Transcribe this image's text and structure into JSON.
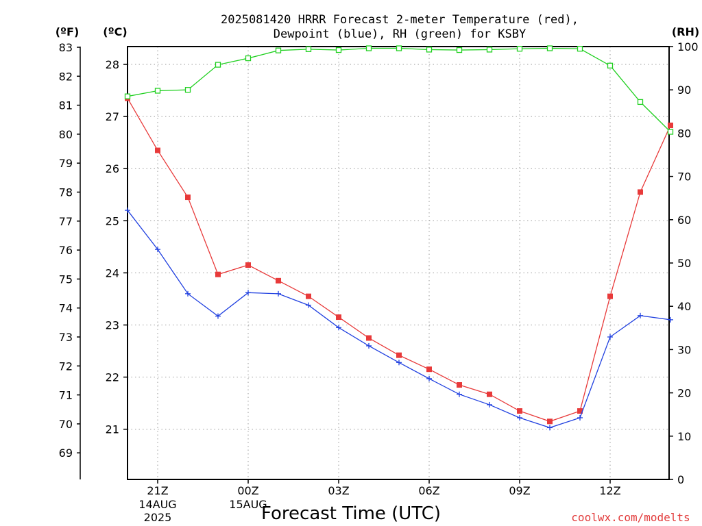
{
  "title_line1": "2025081420 HRRR Forecast 2-meter Temperature (red),",
  "title_line2": "Dewpoint (blue), RH (green) for KSBY",
  "units": {
    "fahrenheit": "(ºF)",
    "celsius": "(ºC)",
    "rh": "(RH)"
  },
  "xlabel": "Forecast Time (UTC)",
  "credit": "coolwx.com/modelts",
  "chart_data": {
    "type": "line",
    "title": "2025081420 HRRR Forecast 2-meter Temperature (red), Dewpoint (blue), RH (green) for KSBY",
    "xlabel": "Forecast Time (UTC)",
    "x_hours_utc": [
      "20Z",
      "21Z",
      "22Z",
      "23Z",
      "00Z",
      "01Z",
      "02Z",
      "03Z",
      "04Z",
      "05Z",
      "06Z",
      "07Z",
      "08Z",
      "09Z",
      "10Z",
      "11Z",
      "12Z",
      "13Z",
      "14Z"
    ],
    "x_ticks": [
      {
        "hour_index": 1,
        "label": "21Z",
        "sub": [
          "14AUG",
          "2025"
        ]
      },
      {
        "hour_index": 4,
        "label": "00Z",
        "sub": [
          "15AUG"
        ]
      },
      {
        "hour_index": 7,
        "label": "03Z",
        "sub": []
      },
      {
        "hour_index": 10,
        "label": "06Z",
        "sub": []
      },
      {
        "hour_index": 13,
        "label": "09Z",
        "sub": []
      },
      {
        "hour_index": 16,
        "label": "12Z",
        "sub": []
      }
    ],
    "left_axis_f": {
      "label": "(ºF)",
      "ticks": [
        69,
        70,
        71,
        72,
        73,
        74,
        75,
        76,
        77,
        78,
        79,
        80,
        81,
        82,
        83
      ]
    },
    "left_axis_c": {
      "label": "(ºC)",
      "ylim": [
        19.95,
        28.35
      ],
      "ticks": [
        21,
        22,
        23,
        24,
        25,
        26,
        27,
        28
      ]
    },
    "right_axis_rh": {
      "label": "(RH)",
      "ylim": [
        0,
        100
      ],
      "ticks": [
        0,
        10,
        20,
        30,
        40,
        50,
        60,
        70,
        80,
        90,
        100
      ]
    },
    "grid": true,
    "series": [
      {
        "name": "Temperature",
        "axis": "celsius",
        "color": "#e83a3a",
        "marker": "filled-square",
        "values": [
          27.35,
          26.35,
          25.45,
          23.97,
          24.15,
          23.85,
          23.55,
          23.15,
          22.75,
          22.42,
          22.15,
          21.85,
          21.67,
          21.35,
          21.15,
          21.35,
          23.55,
          25.55,
          26.83
        ]
      },
      {
        "name": "Dewpoint",
        "axis": "celsius",
        "color": "#2040e0",
        "marker": "plus",
        "values": [
          25.2,
          24.45,
          23.6,
          23.17,
          23.62,
          23.6,
          23.38,
          22.95,
          22.6,
          22.28,
          21.97,
          21.67,
          21.47,
          21.22,
          21.03,
          21.22,
          22.77,
          23.18,
          23.1
        ]
      },
      {
        "name": "RH",
        "axis": "rh",
        "color": "#20d020",
        "marker": "open-square",
        "values": [
          88.5,
          89.8,
          90.0,
          95.8,
          97.3,
          99.1,
          99.4,
          99.2,
          99.6,
          99.6,
          99.3,
          99.2,
          99.3,
          99.5,
          99.6,
          99.5,
          95.6,
          87.2,
          80.3
        ]
      }
    ]
  }
}
